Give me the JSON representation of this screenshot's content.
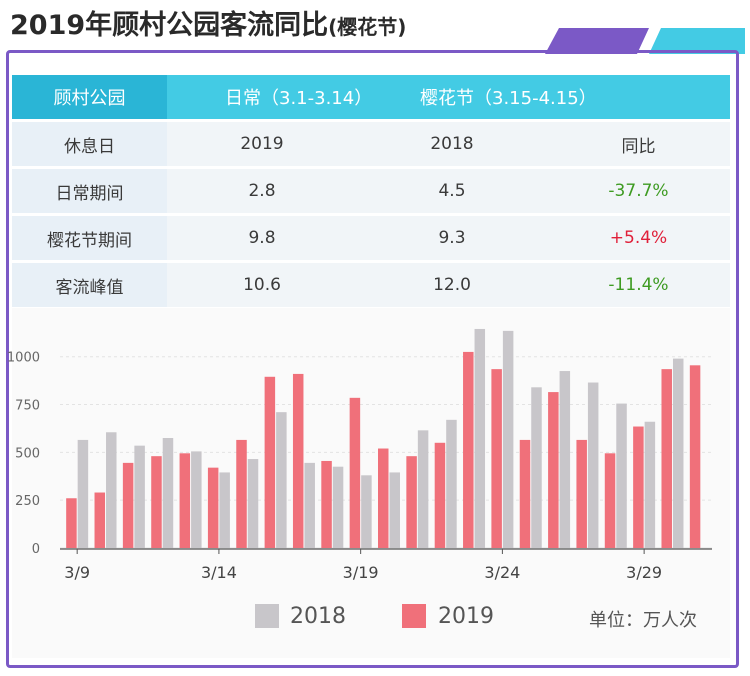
{
  "title": {
    "main": "2019年顾村公园客流同比",
    "sub": "(樱花节)"
  },
  "table": {
    "header": [
      "顾村公园",
      "日常（3.1-3.14）",
      "樱花节（3.15-4.15）"
    ],
    "columns": [
      "休息日",
      "2019",
      "2018",
      "同比"
    ],
    "rows": [
      {
        "label": "日常期间",
        "v2019": "2.8",
        "v2018": "4.5",
        "change": "-37.7%",
        "trend": "neg"
      },
      {
        "label": "樱花节期间",
        "v2019": "9.8",
        "v2018": "9.3",
        "change": "+5.4%",
        "trend": "pos"
      },
      {
        "label": "客流峰值",
        "v2019": "10.6",
        "v2018": "12.0",
        "change": "-11.4%",
        "trend": "neg"
      }
    ]
  },
  "colors": {
    "s2018": "#c8c6ca",
    "s2019": "#f0707a",
    "accent": "#7b59c6",
    "header": "#43cbe4"
  },
  "chart_data": {
    "type": "bar",
    "title": "",
    "xlabel": "",
    "ylabel": "",
    "ylim": [
      0,
      1150
    ],
    "yticks": [
      0,
      250,
      500,
      750,
      1000
    ],
    "ytick_labels": [
      "0",
      "250",
      "500",
      "750",
      "1000"
    ],
    "categories": [
      "3/9",
      "3/10",
      "3/11",
      "3/12",
      "3/13",
      "3/14",
      "3/15",
      "3/16",
      "3/17",
      "3/18",
      "3/19",
      "3/20",
      "3/21",
      "3/22",
      "3/23",
      "3/24",
      "3/25",
      "3/26",
      "3/27",
      "3/28",
      "3/29",
      "3/30",
      "3/31"
    ],
    "xtick_labels": [
      {
        "index": 0,
        "label": "3/9"
      },
      {
        "index": 5,
        "label": "3/14"
      },
      {
        "index": 10,
        "label": "3/19"
      },
      {
        "index": 15,
        "label": "3/24"
      },
      {
        "index": 20,
        "label": "3/29"
      }
    ],
    "series": [
      {
        "name": "2019",
        "values": [
          260,
          290,
          445,
          480,
          495,
          420,
          565,
          895,
          910,
          455,
          785,
          520,
          480,
          550,
          1025,
          935,
          565,
          815,
          565,
          495,
          635,
          935,
          955
        ]
      },
      {
        "name": "2018",
        "values": [
          565,
          605,
          535,
          575,
          505,
          395,
          465,
          710,
          445,
          425,
          380,
          395,
          615,
          670,
          1145,
          1135,
          840,
          925,
          865,
          755,
          660,
          990,
          null
        ]
      }
    ],
    "legend": [
      "2018",
      "2019"
    ],
    "unit": "单位：万人次"
  }
}
